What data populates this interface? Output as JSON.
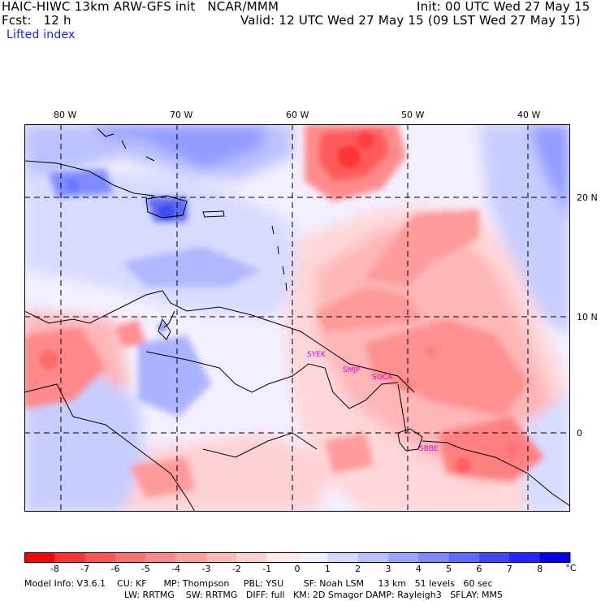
{
  "header": {
    "line1_left": "HAIC-HIWC 13km ARW-GFS init   NCAR/MMM",
    "line1_right": "Init: 00 UTC Wed 27 May 15",
    "line2_left": "Fcst:   12 h",
    "line2_right": "Valid: 12 UTC Wed 27 May 15 (09 LST Wed 27 May 15)",
    "field": "Lifted index"
  },
  "axes": {
    "lon_labels": [
      "80 W",
      "70 W",
      "60 W",
      "50 W",
      "40 W"
    ],
    "lat_labels": [
      "20 N",
      "10 N",
      "0"
    ]
  },
  "stations": [
    "SYEK",
    "SMJP",
    "SOCA",
    "SBBE"
  ],
  "colorbar": {
    "ticks": [
      "-8",
      "-7",
      "-6",
      "-5",
      "-4",
      "-3",
      "-2",
      "-1",
      "0",
      "1",
      "2",
      "3",
      "4",
      "5",
      "6",
      "7",
      "8"
    ],
    "unit": "°C",
    "colors": [
      "#ff0000",
      "#ff3333",
      "#ff5555",
      "#ff7070",
      "#ff8888",
      "#ffa0a0",
      "#ffb8b8",
      "#ffd0d0",
      "#ffe8e8",
      "#eef0ff",
      "#d4d8ff",
      "#b8c0ff",
      "#9aa4ff",
      "#7e88ff",
      "#6068ff",
      "#4048ff",
      "#2028ff",
      "#0000ee"
    ]
  },
  "footer": {
    "line1": "Model Info: V3.6.1    CU: KF      MP: Thompson     PBL: YSU       SF: Noah LSM     13 km   51 levels   60 sec",
    "line2": "LW: RRTMG    SW: RRTMG   DIFF: full   KM: 2D Smagor DAMP: Rayleigh3   SFLAY: MM5"
  },
  "palette": {
    "neutral": "#f4f0ff",
    "red_light": "#ffd6d6",
    "red_mid": "#ff9c9c",
    "red_strong": "#ff6060",
    "red_deep": "#ff3030",
    "blue_light": "#d0d6ff",
    "blue_mid": "#9aa6ff",
    "blue_strong": "#6a78ff",
    "blue_deep": "#3848ee",
    "coast": "#000000",
    "grid": "#000000"
  }
}
